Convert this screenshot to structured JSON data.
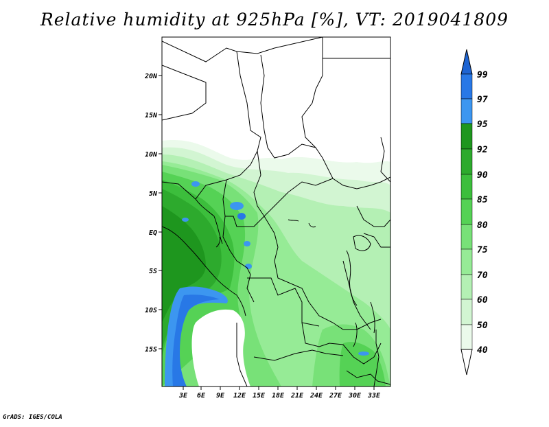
{
  "title": "Relative humidity at 925hPa [%], VT: 2019041809",
  "footer": "GrADS: IGES/COLA",
  "map": {
    "lat_labels": [
      "20N",
      "15N",
      "10N",
      "5N",
      "EQ",
      "5S",
      "10S",
      "15S"
    ],
    "lon_labels": [
      "3E",
      "6E",
      "9E",
      "12E",
      "15E",
      "18E",
      "21E",
      "24E",
      "27E",
      "30E",
      "33E"
    ]
  },
  "colorbar": {
    "levels": [
      "99",
      "97",
      "95",
      "92",
      "90",
      "85",
      "80",
      "75",
      "70",
      "60",
      "50",
      "40"
    ],
    "colors": {
      "above_99": "#1e64d2",
      "97_99": "#2878e6",
      "95_97": "#3c96f0",
      "92_95": "#1e961e",
      "90_92": "#2daa2d",
      "85_90": "#3cbe3c",
      "80_85": "#55d255",
      "75_80": "#78e178",
      "70_75": "#96eb96",
      "60_70": "#b4f0b4",
      "50_60": "#d2f5d2",
      "40_50": "#ebfaeb",
      "below_40": "#ffffff"
    }
  }
}
